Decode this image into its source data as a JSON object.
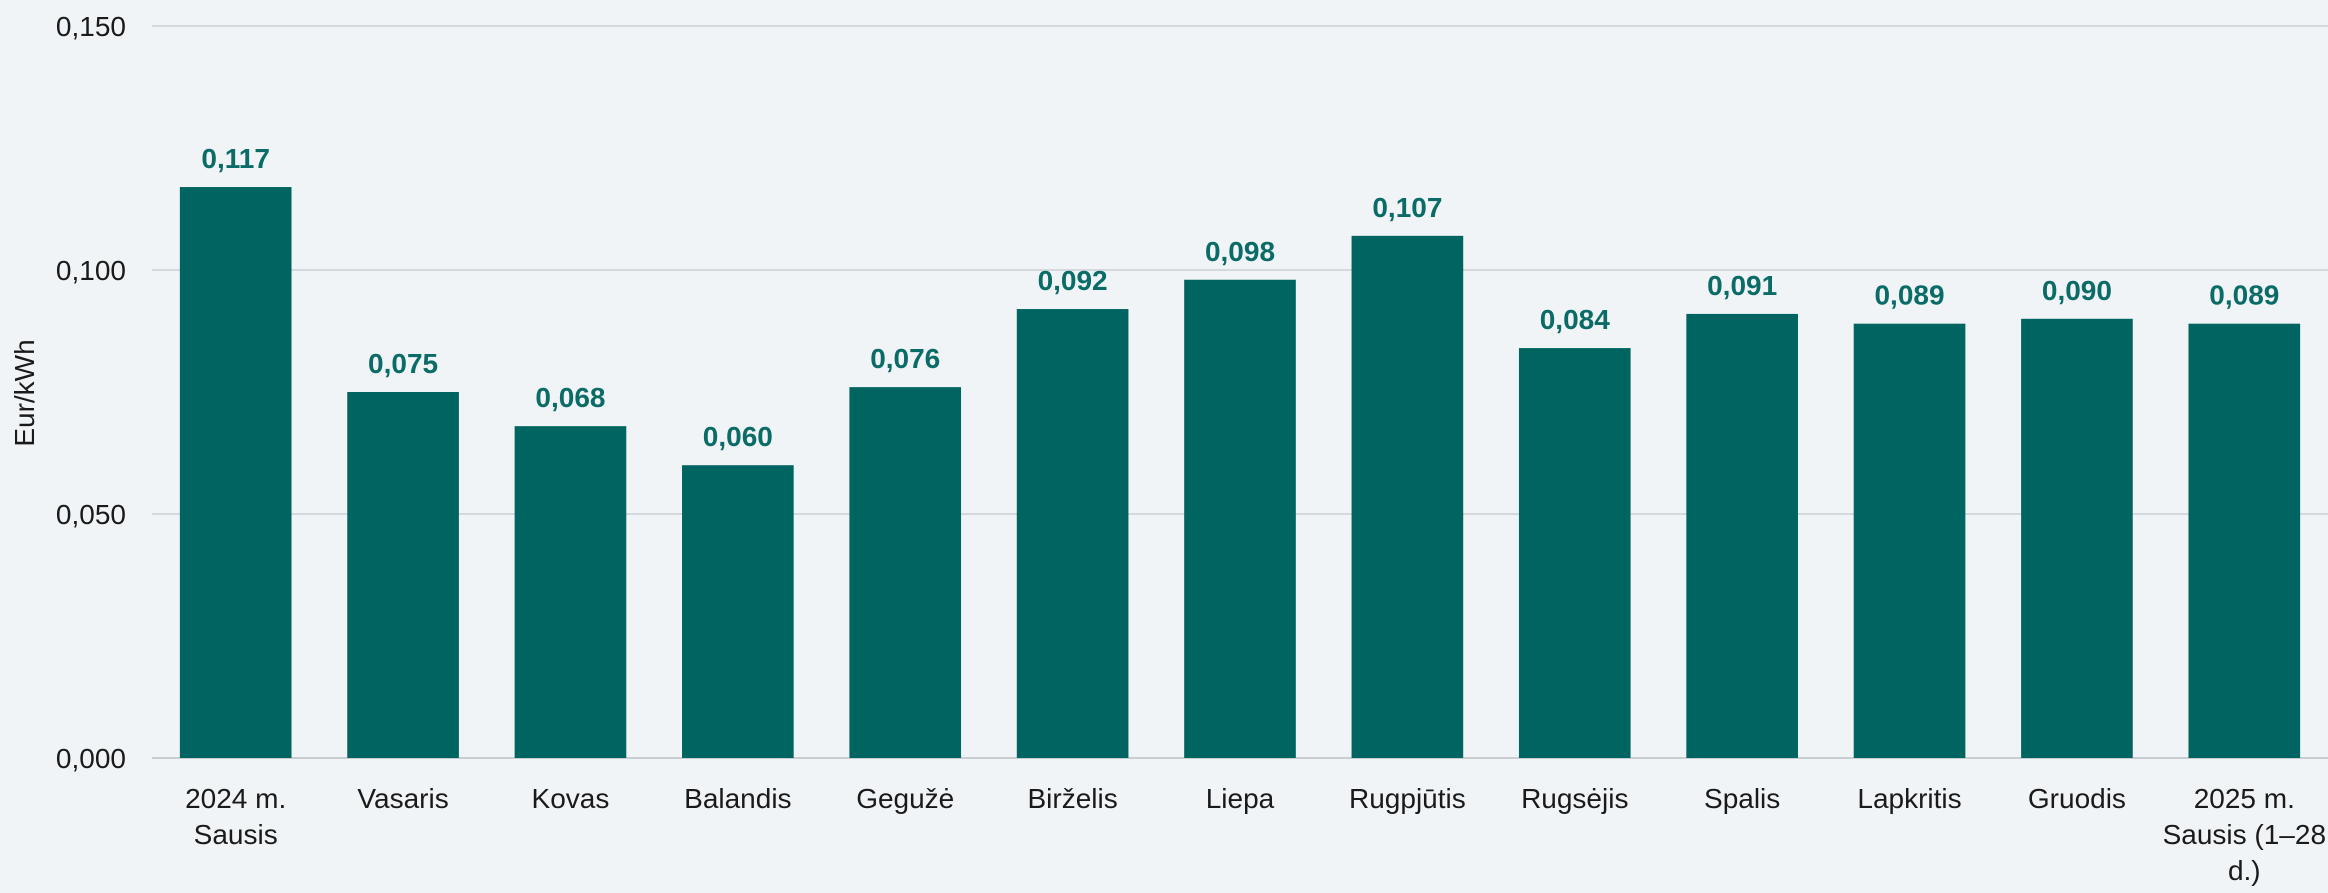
{
  "chart_data": {
    "type": "bar",
    "title": "",
    "xlabel": "",
    "ylabel": "Eur/kWh",
    "ylim": [
      0,
      0.15
    ],
    "yticks": [
      "0,000",
      "0,050",
      "0,100",
      "0,150"
    ],
    "ytick_values": [
      0,
      0.05,
      0.1,
      0.15
    ],
    "grid": true,
    "legend": "none",
    "categories": [
      [
        "2024 m.",
        "Sausis"
      ],
      [
        "Vasaris"
      ],
      [
        "Kovas"
      ],
      [
        "Balandis"
      ],
      [
        "Gegužė"
      ],
      [
        "Birželis"
      ],
      [
        "Liepa"
      ],
      [
        "Rugpjūtis"
      ],
      [
        "Rugsėjis"
      ],
      [
        "Spalis"
      ],
      [
        "Lapkritis"
      ],
      [
        "Gruodis"
      ],
      [
        "2025 m.",
        "Sausis (1–28",
        "d.)"
      ]
    ],
    "values": [
      0.117,
      0.075,
      0.068,
      0.06,
      0.076,
      0.092,
      0.098,
      0.107,
      0.084,
      0.091,
      0.089,
      0.09,
      0.089
    ],
    "value_labels": [
      "0,117",
      "0,075",
      "0,068",
      "0,060",
      "0,076",
      "0,092",
      "0,098",
      "0,107",
      "0,084",
      "0,091",
      "0,089",
      "0,090",
      "0,089"
    ],
    "colors": {
      "bar": "#006561",
      "label": "#0b6b67",
      "grid": "#d3d9de",
      "axis": "#c8cdd2"
    }
  }
}
